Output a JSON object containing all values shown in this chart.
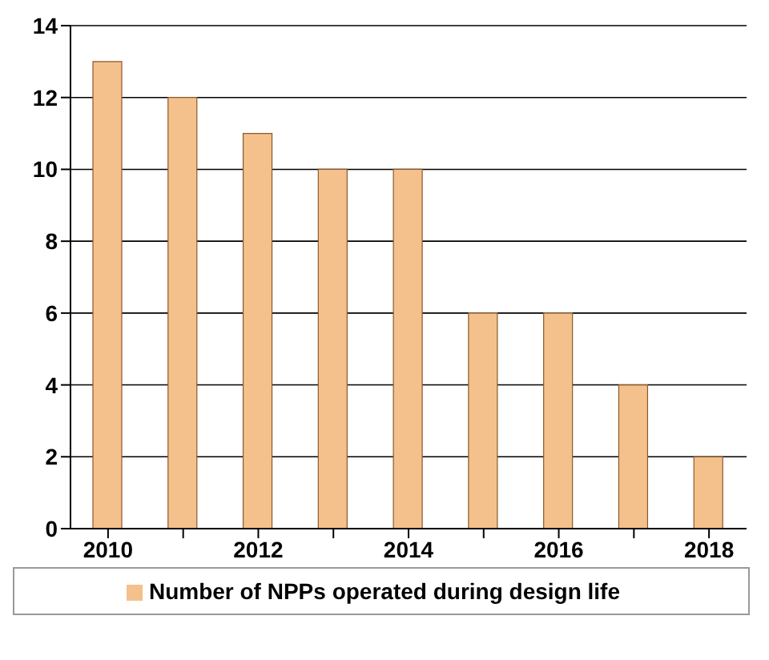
{
  "chart_data": {
    "type": "bar",
    "categories": [
      "2010",
      null,
      "2012",
      null,
      "2014",
      null,
      "2016",
      null,
      "2018"
    ],
    "series": [
      {
        "name": "Number of NPPs operated during design life",
        "color": "#f4c08c",
        "values": [
          13,
          12,
          11,
          10,
          10,
          6,
          6,
          4,
          2
        ]
      }
    ],
    "ylim": [
      0,
      14
    ],
    "yticks": [
      0,
      2,
      4,
      6,
      8,
      10,
      12,
      14
    ],
    "grid": "y",
    "legend": "bottom"
  }
}
